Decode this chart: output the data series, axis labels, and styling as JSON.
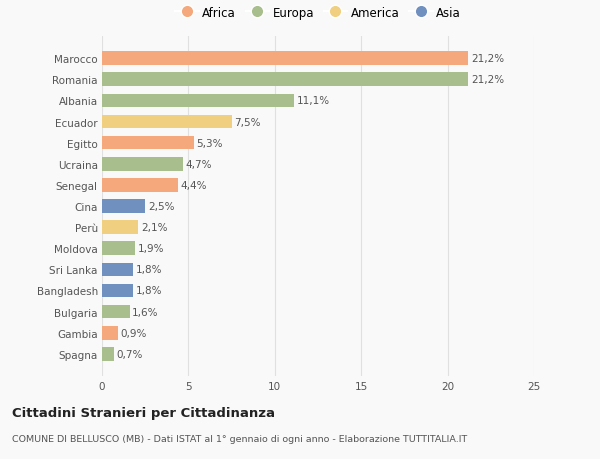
{
  "countries": [
    "Marocco",
    "Romania",
    "Albania",
    "Ecuador",
    "Egitto",
    "Ucraina",
    "Senegal",
    "Cina",
    "Perù",
    "Moldova",
    "Sri Lanka",
    "Bangladesh",
    "Bulgaria",
    "Gambia",
    "Spagna"
  ],
  "values": [
    21.2,
    21.2,
    11.1,
    7.5,
    5.3,
    4.7,
    4.4,
    2.5,
    2.1,
    1.9,
    1.8,
    1.8,
    1.6,
    0.9,
    0.7
  ],
  "labels": [
    "21,2%",
    "21,2%",
    "11,1%",
    "7,5%",
    "5,3%",
    "4,7%",
    "4,4%",
    "2,5%",
    "2,1%",
    "1,9%",
    "1,8%",
    "1,8%",
    "1,6%",
    "0,9%",
    "0,7%"
  ],
  "continents": [
    "Africa",
    "Europa",
    "Europa",
    "America",
    "Africa",
    "Europa",
    "Africa",
    "Asia",
    "America",
    "Europa",
    "Asia",
    "Asia",
    "Europa",
    "Africa",
    "Europa"
  ],
  "colors": {
    "Africa": "#F4A87C",
    "Europa": "#A8BE8C",
    "America": "#F0D080",
    "Asia": "#7090C0"
  },
  "xlim": [
    0,
    25
  ],
  "xticks": [
    0,
    5,
    10,
    15,
    20,
    25
  ],
  "title": "Cittadini Stranieri per Cittadinanza",
  "subtitle": "COMUNE DI BELLUSCO (MB) - Dati ISTAT al 1° gennaio di ogni anno - Elaborazione TUTTITALIA.IT",
  "background_color": "#f9f9f9",
  "grid_color": "#e0e0e0",
  "legend_order": [
    "Africa",
    "Europa",
    "America",
    "Asia"
  ]
}
